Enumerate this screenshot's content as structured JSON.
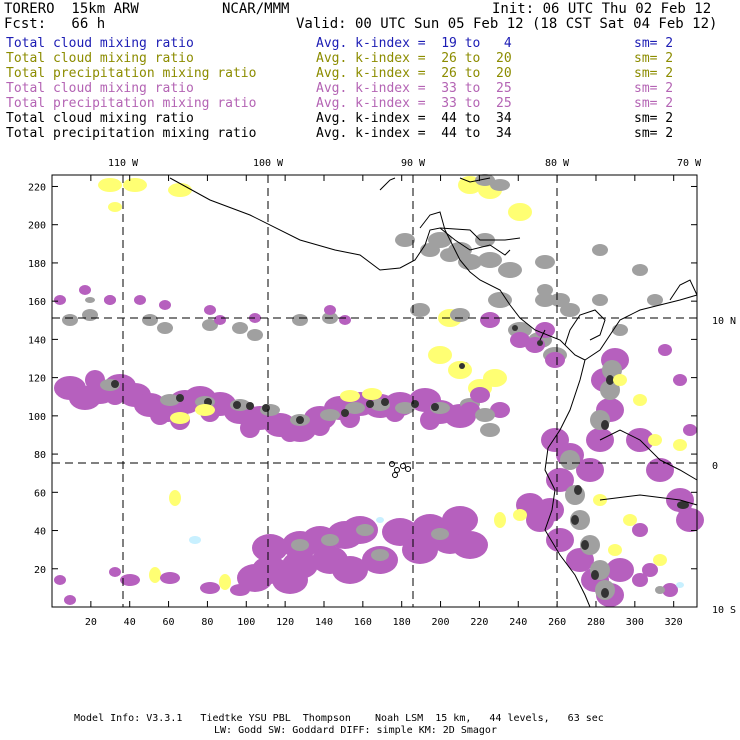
{
  "header": {
    "model": "TORERO  15km ARW",
    "org": "NCAR/MMM",
    "init": "Init: 06 UTC Thu 02 Feb 12",
    "fcst": "Fcst:   66 h",
    "valid": "Valid: 00 UTC Sun 05 Feb 12 (18 CST Sat 04 Feb 12)"
  },
  "legend": [
    {
      "name": "Total cloud mixing ratio",
      "kindex": "Avg. k-index =  19 to   4",
      "sm": "sm= 2",
      "color": "#1c1cb4"
    },
    {
      "name": "Total cloud mixing ratio",
      "kindex": "Avg. k-index =  26 to  20",
      "sm": "sm= 2",
      "color": "#8c8c00"
    },
    {
      "name": "Total precipitation mixing ratio",
      "kindex": "Avg. k-index =  26 to  20",
      "sm": "sm= 2",
      "color": "#8c8c00"
    },
    {
      "name": "Total cloud mixing ratio",
      "kindex": "Avg. k-index =  33 to  25",
      "sm": "sm= 2",
      "color": "#b464b4"
    },
    {
      "name": "Total precipitation mixing ratio",
      "kindex": "Avg. k-index =  33 to  25",
      "sm": "sm= 2",
      "color": "#b464b4"
    },
    {
      "name": "Total cloud mixing ratio",
      "kindex": "Avg. k-index =  44 to  34",
      "sm": "sm= 2",
      "color": "#000000"
    },
    {
      "name": "Total precipitation mixing ratio",
      "kindex": "Avg. k-index =  44 to  34",
      "sm": "sm= 2",
      "color": "#000000"
    }
  ],
  "map": {
    "top_lon_labels": [
      "110 W",
      "100 W",
      "90 W",
      "80 W",
      "70 W"
    ],
    "right_lat_labels": [
      "10 N",
      "0",
      "10 S"
    ],
    "x_ticks": [
      "20",
      "40",
      "60",
      "80",
      "100",
      "120",
      "140",
      "160",
      "180",
      "200",
      "220",
      "240",
      "260",
      "280",
      "300",
      "320"
    ],
    "y_ticks": [
      "220",
      "200",
      "180",
      "160",
      "140",
      "120",
      "100",
      "80",
      "60",
      "40",
      "20"
    ],
    "colors": {
      "gray": "#a0a0a0",
      "dark": "#333333",
      "purple": "#b660be",
      "yellow": "#ffff73",
      "lightblue": "#c8f0ff",
      "coast": "#000000"
    }
  },
  "footer": {
    "line1": "Model Info: V3.3.1   Tiedtke YSU PBL  Thompson    Noah LSM  15 km,   44 levels,   63 sec",
    "line2": "LW: Godd SW: Goddard DIFF: simple KM: 2D Smagor"
  }
}
